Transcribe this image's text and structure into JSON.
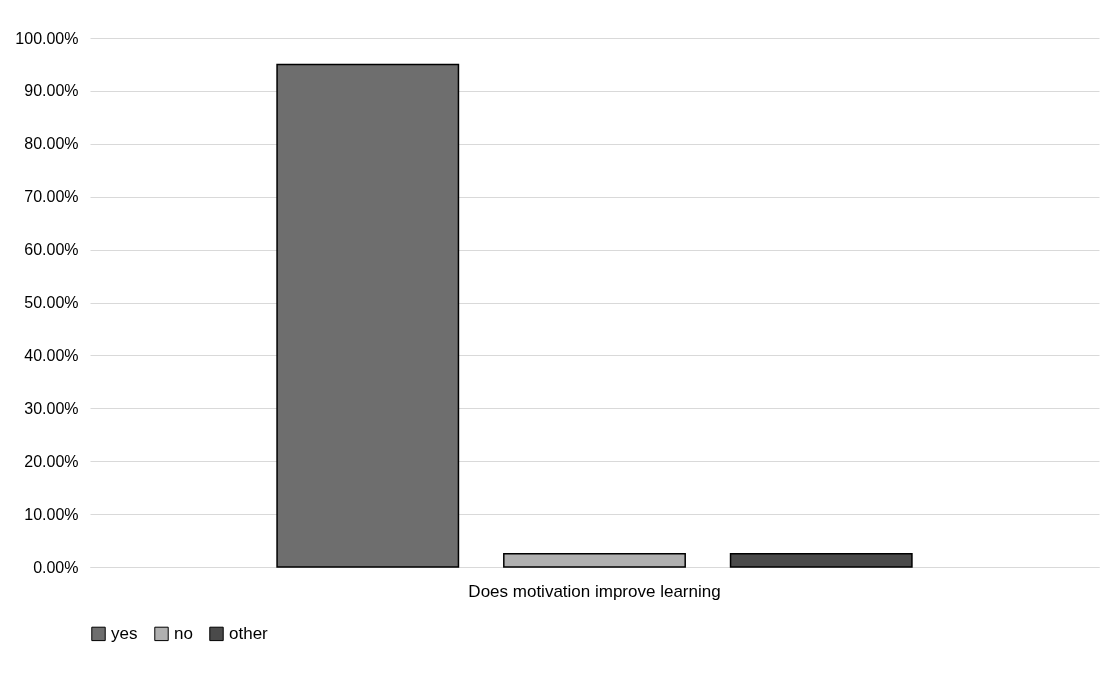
{
  "chart_data": {
    "type": "bar",
    "categories": [
      "Does motivation improve learning"
    ],
    "series": [
      {
        "name": "yes",
        "color": "#6e6e6e",
        "values": [
          95
        ]
      },
      {
        "name": "no",
        "color": "#b0b0b0",
        "values": [
          2.5
        ]
      },
      {
        "name": "other",
        "color": "#4a4a4a",
        "values": [
          2.5
        ]
      }
    ],
    "ylim": [
      0,
      100
    ],
    "yticks": [
      {
        "value": 0,
        "label": "0.00%"
      },
      {
        "value": 10,
        "label": "10.00%"
      },
      {
        "value": 20,
        "label": "20.00%"
      },
      {
        "value": 30,
        "label": "30.00%"
      },
      {
        "value": 40,
        "label": "40.00%"
      },
      {
        "value": 50,
        "label": "50.00%"
      },
      {
        "value": 60,
        "label": "60.00%"
      },
      {
        "value": 70,
        "label": "70.00%"
      },
      {
        "value": 80,
        "label": "80.00%"
      },
      {
        "value": 90,
        "label": "90.00%"
      },
      {
        "value": 100,
        "label": "100.00%"
      }
    ],
    "grid": "y",
    "legend": "bottom"
  }
}
